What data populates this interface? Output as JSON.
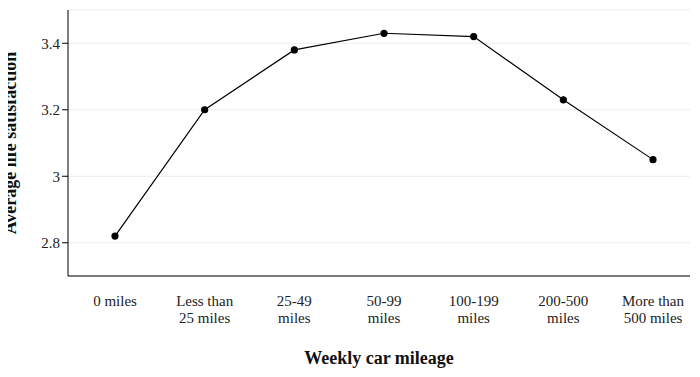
{
  "chart_data": {
    "type": "line",
    "x_label": "Weekly car mileage",
    "y_label": "Average life satisfaction",
    "categories": [
      "0 miles",
      "Less than 25 miles",
      "25-49 miles",
      "50-99 miles",
      "100-199 miles",
      "200-500 miles",
      "More than 500 miles"
    ],
    "values": [
      2.82,
      3.2,
      3.38,
      3.43,
      3.42,
      3.23,
      3.05
    ],
    "color": "#000000",
    "marker": "circle",
    "line_style": "solid",
    "ylim": [
      2.7,
      3.5
    ],
    "yticks": [
      2.8,
      3,
      3.2,
      3.4
    ],
    "grid": true
  }
}
